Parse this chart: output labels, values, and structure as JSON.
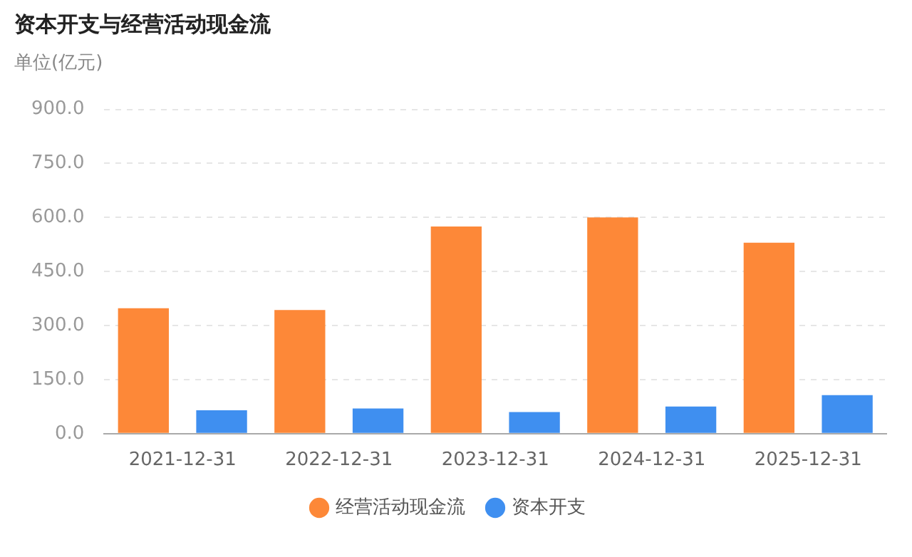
{
  "chart_data": {
    "type": "bar",
    "title": "资本开支与经营活动现金流",
    "ylabel": "单位(亿元)",
    "categories": [
      "2021-12-31",
      "2022-12-31",
      "2023-12-31",
      "2024-12-31",
      "2025-12-31"
    ],
    "series": [
      {
        "name": "经营活动现金流",
        "color": "#fd8838",
        "values": [
          348,
          343,
          575,
          600,
          530
        ]
      },
      {
        "name": "资本开支",
        "color": "#3f8ff0",
        "values": [
          65,
          70,
          60,
          75,
          107
        ]
      }
    ],
    "ylim": [
      0,
      900
    ],
    "yticks": [
      {
        "value": 0,
        "label": "0.0"
      },
      {
        "value": 150,
        "label": "150.0"
      },
      {
        "value": 300,
        "label": "300.0"
      },
      {
        "value": 450,
        "label": "450.0"
      },
      {
        "value": 600,
        "label": "600.0"
      },
      {
        "value": 750,
        "label": "750.0"
      },
      {
        "value": 900,
        "label": "900.0"
      }
    ],
    "grid": "y",
    "legend": "bottom"
  }
}
